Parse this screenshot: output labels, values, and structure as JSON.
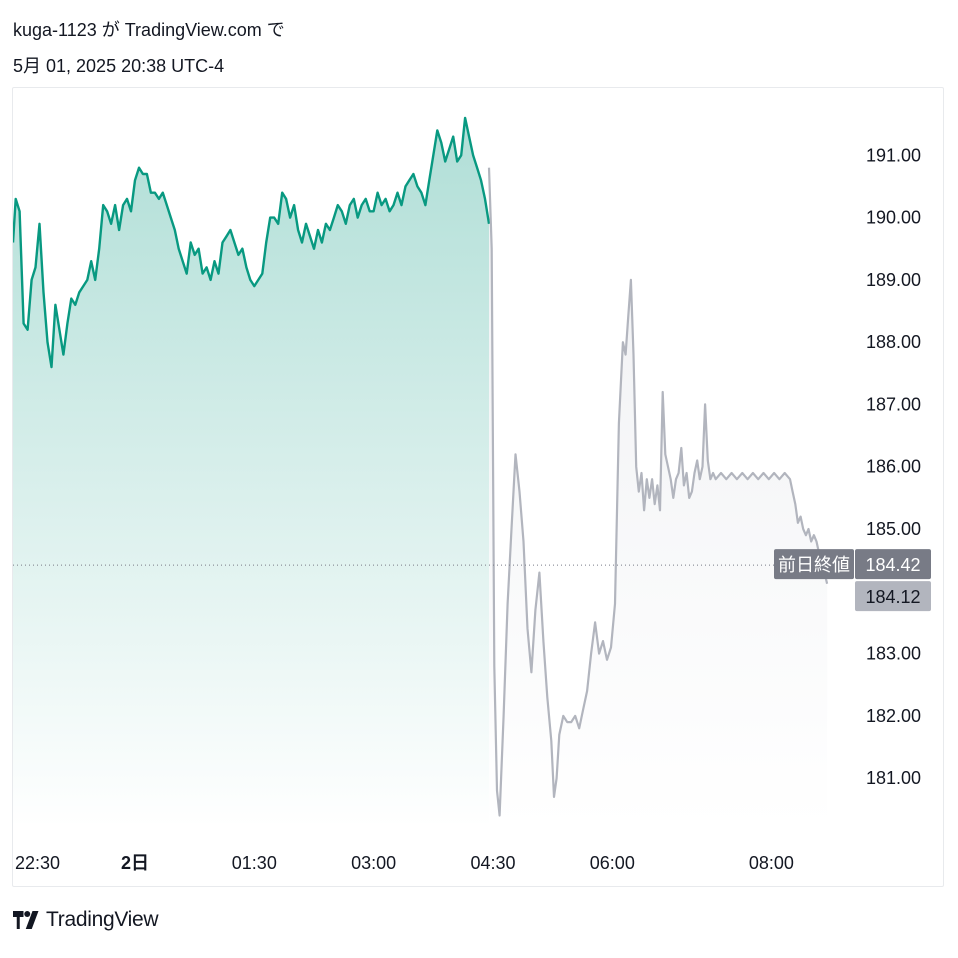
{
  "header": {
    "line1": "kuga-1123 が TradingView.com で",
    "line2": "5月 01, 2025 20:38 UTC-4"
  },
  "footer": {
    "brand": "TradingView",
    "logo_icon": "tradingview-logo-icon"
  },
  "colors": {
    "regular_line": "#089981",
    "regular_fill": "#089981",
    "extended_line": "#b2b5be",
    "extended_fill": "#d1d4dc",
    "prev_close_tag": "#787b86",
    "last_price_tag": "#b2b5be",
    "text": "#131722"
  },
  "chart_data": {
    "type": "area",
    "y_ticks": [
      "191.00",
      "190.00",
      "189.00",
      "188.00",
      "187.00",
      "186.00",
      "185.00",
      "183.00",
      "182.00",
      "181.00"
    ],
    "ylim": [
      180.2,
      192.0
    ],
    "x_ticks": [
      {
        "label": "22:30",
        "t": 0,
        "bold": false
      },
      {
        "label": "2日",
        "t": 90,
        "bold": true
      },
      {
        "label": "01:30",
        "t": 180,
        "bold": false
      },
      {
        "label": "03:00",
        "t": 270,
        "bold": false
      },
      {
        "label": "04:30",
        "t": 360,
        "bold": false
      },
      {
        "label": "06:00",
        "t": 450,
        "bold": false
      },
      {
        "label": "08:00",
        "t": 570,
        "bold": false
      }
    ],
    "xlim": [
      -2,
      627
    ],
    "previous_close": {
      "label": "前日終値",
      "value": 184.42,
      "value_text": "184.42"
    },
    "last_price": {
      "value": 184.12,
      "value_text": "184.12"
    },
    "series": [
      {
        "session": "regular",
        "points": [
          [
            -2,
            189.6
          ],
          [
            0,
            190.3
          ],
          [
            3,
            190.1
          ],
          [
            6,
            188.3
          ],
          [
            9,
            188.2
          ],
          [
            12,
            189.0
          ],
          [
            15,
            189.2
          ],
          [
            18,
            189.9
          ],
          [
            21,
            188.8
          ],
          [
            24,
            188.0
          ],
          [
            27,
            187.6
          ],
          [
            30,
            188.6
          ],
          [
            33,
            188.2
          ],
          [
            36,
            187.8
          ],
          [
            39,
            188.3
          ],
          [
            42,
            188.7
          ],
          [
            45,
            188.6
          ],
          [
            48,
            188.8
          ],
          [
            51,
            188.9
          ],
          [
            54,
            189.0
          ],
          [
            57,
            189.3
          ],
          [
            60,
            189.0
          ],
          [
            63,
            189.5
          ],
          [
            66,
            190.2
          ],
          [
            69,
            190.1
          ],
          [
            72,
            189.9
          ],
          [
            75,
            190.2
          ],
          [
            78,
            189.8
          ],
          [
            81,
            190.2
          ],
          [
            84,
            190.3
          ],
          [
            87,
            190.1
          ],
          [
            90,
            190.6
          ],
          [
            93,
            190.8
          ],
          [
            96,
            190.7
          ],
          [
            99,
            190.7
          ],
          [
            102,
            190.4
          ],
          [
            105,
            190.4
          ],
          [
            108,
            190.3
          ],
          [
            111,
            190.4
          ],
          [
            114,
            190.2
          ],
          [
            117,
            190.0
          ],
          [
            120,
            189.8
          ],
          [
            123,
            189.5
          ],
          [
            126,
            189.3
          ],
          [
            129,
            189.1
          ],
          [
            132,
            189.6
          ],
          [
            135,
            189.4
          ],
          [
            138,
            189.5
          ],
          [
            141,
            189.1
          ],
          [
            144,
            189.2
          ],
          [
            147,
            189.0
          ],
          [
            150,
            189.3
          ],
          [
            153,
            189.1
          ],
          [
            156,
            189.6
          ],
          [
            159,
            189.7
          ],
          [
            162,
            189.8
          ],
          [
            165,
            189.6
          ],
          [
            168,
            189.4
          ],
          [
            171,
            189.5
          ],
          [
            174,
            189.2
          ],
          [
            177,
            189.0
          ],
          [
            180,
            188.9
          ],
          [
            183,
            189.0
          ],
          [
            186,
            189.1
          ],
          [
            189,
            189.6
          ],
          [
            192,
            190.0
          ],
          [
            195,
            190.0
          ],
          [
            198,
            189.9
          ],
          [
            201,
            190.4
          ],
          [
            204,
            190.3
          ],
          [
            207,
            190.0
          ],
          [
            210,
            190.2
          ],
          [
            213,
            189.8
          ],
          [
            216,
            189.6
          ],
          [
            219,
            189.9
          ],
          [
            222,
            189.7
          ],
          [
            225,
            189.5
          ],
          [
            228,
            189.8
          ],
          [
            231,
            189.6
          ],
          [
            234,
            189.9
          ],
          [
            237,
            189.8
          ],
          [
            240,
            190.0
          ],
          [
            243,
            190.2
          ],
          [
            246,
            190.1
          ],
          [
            249,
            189.9
          ],
          [
            252,
            190.2
          ],
          [
            255,
            190.3
          ],
          [
            258,
            190.0
          ],
          [
            261,
            190.2
          ],
          [
            264,
            190.3
          ],
          [
            267,
            190.1
          ],
          [
            270,
            190.1
          ],
          [
            273,
            190.4
          ],
          [
            276,
            190.2
          ],
          [
            279,
            190.3
          ],
          [
            282,
            190.1
          ],
          [
            285,
            190.2
          ],
          [
            288,
            190.4
          ],
          [
            291,
            190.2
          ],
          [
            294,
            190.5
          ],
          [
            297,
            190.6
          ],
          [
            300,
            190.7
          ],
          [
            303,
            190.5
          ],
          [
            306,
            190.4
          ],
          [
            309,
            190.2
          ],
          [
            312,
            190.6
          ],
          [
            315,
            191.0
          ],
          [
            318,
            191.4
          ],
          [
            321,
            191.2
          ],
          [
            324,
            190.9
          ],
          [
            327,
            191.1
          ],
          [
            330,
            191.3
          ],
          [
            333,
            190.9
          ],
          [
            336,
            191.0
          ],
          [
            339,
            191.6
          ],
          [
            342,
            191.3
          ],
          [
            345,
            191.0
          ],
          [
            348,
            190.8
          ],
          [
            351,
            190.6
          ],
          [
            354,
            190.3
          ],
          [
            357,
            189.9
          ]
        ]
      },
      {
        "session": "extended",
        "points": [
          [
            357,
            190.8
          ],
          [
            359,
            189.5
          ],
          [
            361,
            182.8
          ],
          [
            363,
            180.8
          ],
          [
            365,
            180.4
          ],
          [
            368,
            182.0
          ],
          [
            371,
            183.8
          ],
          [
            374,
            185.0
          ],
          [
            377,
            186.2
          ],
          [
            380,
            185.6
          ],
          [
            383,
            184.8
          ],
          [
            386,
            183.4
          ],
          [
            389,
            182.7
          ],
          [
            392,
            183.7
          ],
          [
            395,
            184.3
          ],
          [
            398,
            183.2
          ],
          [
            401,
            182.3
          ],
          [
            404,
            181.6
          ],
          [
            406,
            180.7
          ],
          [
            408,
            181.0
          ],
          [
            410,
            181.7
          ],
          [
            413,
            182.0
          ],
          [
            416,
            181.9
          ],
          [
            419,
            181.9
          ],
          [
            422,
            182.0
          ],
          [
            425,
            181.8
          ],
          [
            428,
            182.1
          ],
          [
            431,
            182.4
          ],
          [
            434,
            183.0
          ],
          [
            437,
            183.5
          ],
          [
            440,
            183.0
          ],
          [
            443,
            183.2
          ],
          [
            446,
            182.9
          ],
          [
            449,
            183.1
          ],
          [
            452,
            183.8
          ],
          [
            455,
            186.7
          ],
          [
            458,
            188.0
          ],
          [
            460,
            187.8
          ],
          [
            462,
            188.4
          ],
          [
            464,
            189.0
          ],
          [
            466,
            187.8
          ],
          [
            468,
            186.0
          ],
          [
            470,
            185.6
          ],
          [
            472,
            185.9
          ],
          [
            474,
            185.3
          ],
          [
            476,
            185.8
          ],
          [
            478,
            185.5
          ],
          [
            480,
            185.8
          ],
          [
            482,
            185.4
          ],
          [
            484,
            185.7
          ],
          [
            486,
            185.3
          ],
          [
            488,
            187.2
          ],
          [
            490,
            186.2
          ],
          [
            492,
            186.0
          ],
          [
            494,
            185.8
          ],
          [
            496,
            185.5
          ],
          [
            498,
            185.8
          ],
          [
            500,
            185.9
          ],
          [
            502,
            186.3
          ],
          [
            504,
            185.7
          ],
          [
            506,
            185.9
          ],
          [
            508,
            185.5
          ],
          [
            510,
            185.6
          ],
          [
            512,
            185.9
          ],
          [
            514,
            186.1
          ],
          [
            516,
            185.8
          ],
          [
            518,
            186.0
          ],
          [
            520,
            187.0
          ],
          [
            522,
            186.1
          ],
          [
            524,
            185.8
          ],
          [
            526,
            185.9
          ],
          [
            528,
            185.8
          ],
          [
            532,
            185.9
          ],
          [
            536,
            185.8
          ],
          [
            540,
            185.9
          ],
          [
            544,
            185.8
          ],
          [
            548,
            185.9
          ],
          [
            552,
            185.8
          ],
          [
            556,
            185.9
          ],
          [
            560,
            185.8
          ],
          [
            564,
            185.9
          ],
          [
            568,
            185.8
          ],
          [
            572,
            185.9
          ],
          [
            576,
            185.8
          ],
          [
            580,
            185.9
          ],
          [
            584,
            185.8
          ],
          [
            586,
            185.6
          ],
          [
            588,
            185.4
          ],
          [
            590,
            185.1
          ],
          [
            592,
            185.2
          ],
          [
            594,
            185.0
          ],
          [
            596,
            184.9
          ],
          [
            598,
            185.0
          ],
          [
            600,
            184.8
          ],
          [
            602,
            184.9
          ],
          [
            604,
            184.8
          ],
          [
            606,
            184.6
          ],
          [
            608,
            184.5
          ],
          [
            610,
            184.3
          ],
          [
            612,
            184.12
          ]
        ]
      }
    ]
  }
}
